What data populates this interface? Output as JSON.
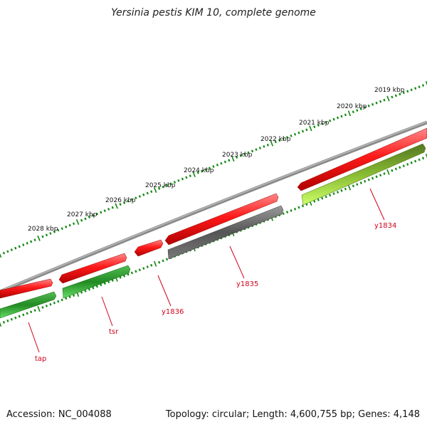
{
  "title": "Yersinia pestis KIM 10, complete genome",
  "footer": {
    "accession": "Accession: NC_004088",
    "topology": "Topology: circular; Length: 4,600,755 bp; Genes: 4,148"
  },
  "scale_labels": [
    "2019 kbp",
    "2020 kbp",
    "2021 kbp",
    "2022 kbp",
    "2023 kbp",
    "2024 kbp",
    "2025 kbp",
    "2026 kbp",
    "2027 kbp",
    "2028 kbp"
  ],
  "gene_labels": [
    "y1834",
    "y1835",
    "y1836",
    "tsr",
    "tap"
  ],
  "colors": {
    "backbone": "#888888",
    "cds_red": "#ee1111",
    "gene_green": "#2e9e2e",
    "gene_lightgreen": "#99ee44",
    "gene_gray": "#666666",
    "scale_green": "#118811",
    "label_red": "#d0021b"
  }
}
